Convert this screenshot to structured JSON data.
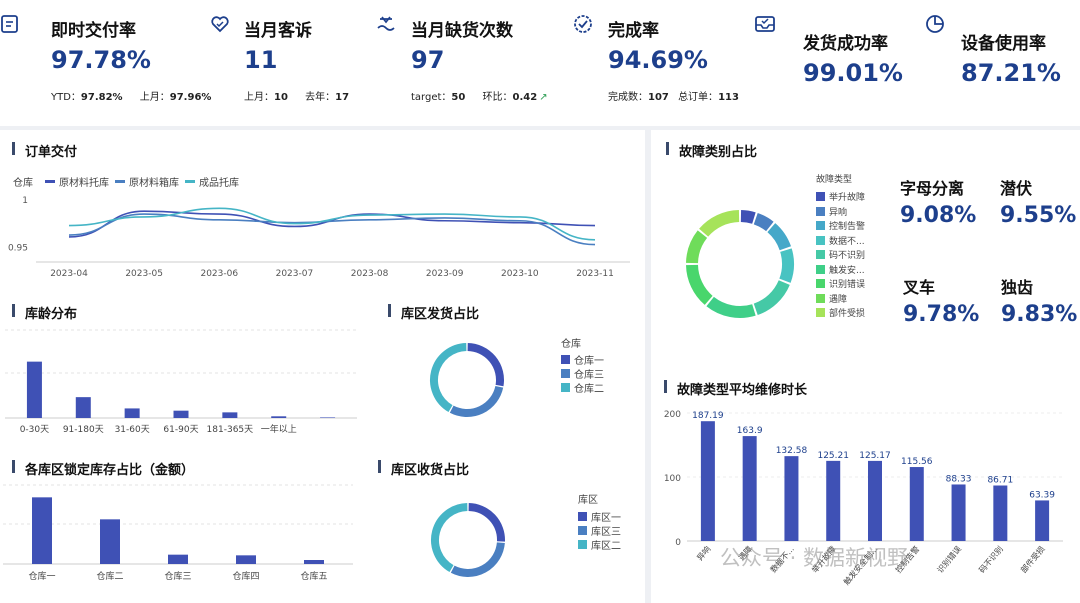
{
  "kpis": [
    {
      "title": "即时交付率",
      "value": "97.78%",
      "sub": [
        {
          "label": "YTD：",
          "value": "97.82%"
        },
        {
          "label": "上月：",
          "value": "97.96%"
        }
      ]
    },
    {
      "title": "当月客诉",
      "value": "11",
      "sub": [
        {
          "label": "上月：",
          "value": "10"
        },
        {
          "label": "去年：",
          "value": "17"
        }
      ]
    },
    {
      "title": "当月缺货次数",
      "value": "97",
      "sub": [
        {
          "label": "target：",
          "value": "50"
        },
        {
          "label": "环比：",
          "value": "0.42"
        }
      ]
    },
    {
      "title": "完成率",
      "value": "94.69%",
      "sub": [
        {
          "label": "完成数：",
          "value": "107"
        },
        {
          "label": "总订单：",
          "value": "113"
        }
      ]
    },
    {
      "title": "发货成功率",
      "value": "99.01%"
    },
    {
      "title": "设备使用率",
      "value": "87.21%"
    }
  ],
  "order_delivery": {
    "title": "订单交付",
    "legend_title": "仓库",
    "colors": [
      "#3f51b5",
      "#4a7fc1",
      "#45b5c6"
    ]
  },
  "aging": {
    "title": "库龄分布"
  },
  "ship_share": {
    "title": "库区发货占比",
    "legend_title": "仓库",
    "items": [
      "仓库一",
      "仓库三",
      "仓库二"
    ]
  },
  "lock_share": {
    "title": "各库区锁定库存占比（金额）"
  },
  "recv_share": {
    "title": "库区收货占比",
    "legend_title": "库区",
    "items": [
      "库区一",
      "库区三",
      "库区二"
    ]
  },
  "fault_share": {
    "title": "故障类别占比",
    "legend_title": "故障类型",
    "items": [
      "举升故障",
      "异响",
      "控制告警",
      "数据不...",
      "码不识别",
      "触发安...",
      "识别错误",
      "遇障",
      "部件受损"
    ],
    "colors": [
      "#3f51b5",
      "#4a7fc1",
      "#45a8c9",
      "#48c3c2",
      "#45c9a6",
      "#3fcf88",
      "#49d66c",
      "#6fdc5a",
      "#a6e35a"
    ]
  },
  "fault_metrics": [
    {
      "label": "字母分离",
      "value": "9.08%"
    },
    {
      "label": "潜伏",
      "value": "9.55%"
    },
    {
      "label": "叉车",
      "value": "9.78%"
    },
    {
      "label": "独齿",
      "value": "9.83%"
    }
  ],
  "repair_time": {
    "title": "故障类型平均维修时长"
  },
  "watermark": "公众号 · 数据新视野",
  "chart_data": [
    {
      "type": "line",
      "title": "订单交付",
      "x": [
        "2023-04",
        "2023-05",
        "2023-06",
        "2023-07",
        "2023-08",
        "2023-09",
        "2023-10",
        "2023-11"
      ],
      "series": [
        {
          "name": "原材料托库",
          "values": [
            0.961,
            0.988,
            0.985,
            0.972,
            0.985,
            0.978,
            0.976,
            0.973
          ]
        },
        {
          "name": "原材料箱库",
          "values": [
            0.963,
            0.985,
            0.979,
            0.976,
            0.979,
            0.981,
            0.978,
            0.953
          ]
        },
        {
          "name": "成品托库",
          "values": [
            0.973,
            0.982,
            0.991,
            0.975,
            0.984,
            0.985,
            0.982,
            0.958
          ]
        }
      ],
      "yticks": [
        0.95,
        1
      ],
      "ylim": [
        0.94,
        1.005
      ]
    },
    {
      "type": "bar",
      "title": "库龄分布",
      "categories": [
        "0-30天",
        "91-180天",
        "31-60天",
        "61-90天",
        "181-365天",
        "一年以上",
        ""
      ],
      "values": [
        100,
        37,
        17,
        13,
        10,
        3,
        1
      ],
      "ylim": [
        0,
        110
      ]
    },
    {
      "type": "pie",
      "title": "库区发货占比",
      "categories": [
        "仓库一",
        "仓库三",
        "仓库二"
      ],
      "values": [
        0.28,
        0.3,
        0.42
      ]
    },
    {
      "type": "bar",
      "title": "各库区锁定库存占比（金额）",
      "categories": [
        "仓库一",
        "仓库二",
        "仓库三",
        "仓库四",
        "仓库五"
      ],
      "values": [
        100,
        67,
        14,
        13,
        6
      ],
      "ylim": [
        0,
        105
      ]
    },
    {
      "type": "pie",
      "title": "库区收货占比",
      "categories": [
        "库区一",
        "库区三",
        "库区二"
      ],
      "values": [
        0.26,
        0.32,
        0.42
      ]
    },
    {
      "type": "pie",
      "title": "故障类别占比",
      "categories": [
        "举升故障",
        "异响",
        "控制告警",
        "数据不...",
        "码不识别",
        "触发安...",
        "识别错误",
        "遇障",
        "部件受损"
      ],
      "values": [
        0.05,
        0.06,
        0.09,
        0.11,
        0.14,
        0.16,
        0.14,
        0.11,
        0.14
      ]
    },
    {
      "type": "bar",
      "title": "故障类型平均维修时长",
      "categories": [
        "异响",
        "遇障",
        "数据不...",
        "举升故障",
        "触发安全制...",
        "控制告警",
        "识别错误",
        "码不识别",
        "部件受损"
      ],
      "values": [
        187.19,
        163.9,
        132.58,
        125.21,
        125.17,
        115.56,
        88.33,
        86.71,
        63.39
      ],
      "yticks": [
        0,
        100,
        200
      ],
      "ylim": [
        0,
        200
      ]
    }
  ]
}
